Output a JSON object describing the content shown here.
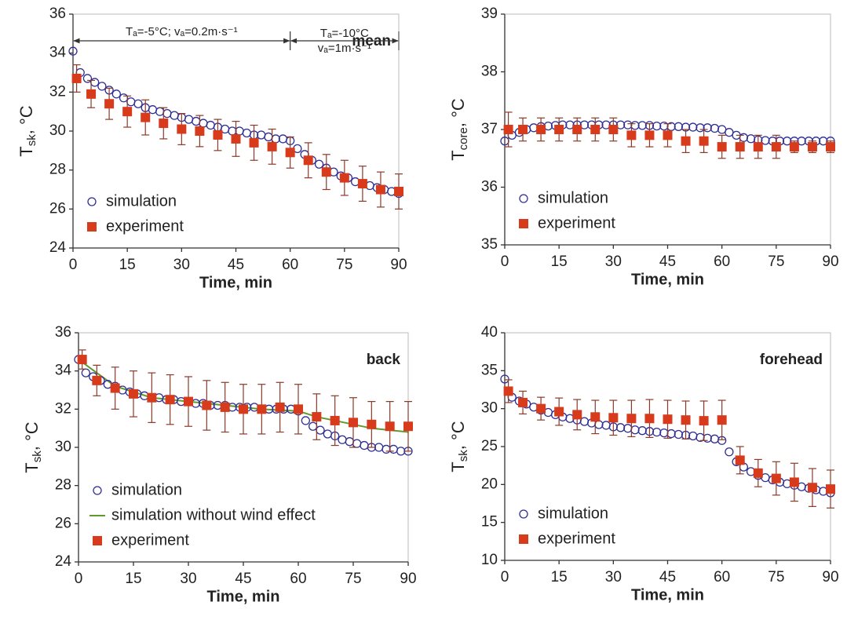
{
  "chart_data": [
    {
      "type": "scatter",
      "label": "mean",
      "x_label": "Time, min",
      "y_label": {
        "symbol": "T",
        "subscript": "sk",
        "unit": ", °C"
      },
      "xlim": [
        0,
        90
      ],
      "xticks": [
        0,
        15,
        30,
        45,
        60,
        75,
        90
      ],
      "ylim": [
        24,
        36
      ],
      "yticks": [
        24,
        26,
        28,
        30,
        32,
        34,
        36
      ],
      "legend": "lower-left",
      "annotations": [
        {
          "lines": [
            "Tₐ=-5°C; vₐ=0.2m·s⁻¹"
          ],
          "from": 0,
          "to": 60
        },
        {
          "lines": [
            "Tₐ=-10°C",
            "vₐ=1m·s⁻¹"
          ],
          "from": 60,
          "to": 90
        }
      ],
      "series": [
        {
          "name": "simulation",
          "marker": "circle",
          "color": "#2e2e96",
          "x": [
            0,
            2,
            4,
            6,
            8,
            10,
            12,
            14,
            16,
            18,
            20,
            22,
            24,
            26,
            28,
            30,
            32,
            34,
            36,
            38,
            40,
            42,
            44,
            46,
            48,
            50,
            52,
            54,
            56,
            58,
            60,
            62,
            64,
            66,
            68,
            70,
            72,
            74,
            76,
            78,
            80,
            82,
            84,
            86,
            88,
            90
          ],
          "values": [
            34.1,
            33.0,
            32.7,
            32.5,
            32.3,
            32.1,
            31.9,
            31.7,
            31.5,
            31.4,
            31.2,
            31.1,
            31.0,
            30.9,
            30.8,
            30.7,
            30.6,
            30.5,
            30.4,
            30.3,
            30.2,
            30.1,
            30.0,
            30.0,
            29.9,
            29.8,
            29.8,
            29.7,
            29.6,
            29.6,
            29.5,
            29.1,
            28.8,
            28.5,
            28.3,
            28.1,
            27.9,
            27.7,
            27.6,
            27.4,
            27.3,
            27.2,
            27.1,
            27.0,
            26.9,
            26.8
          ]
        },
        {
          "name": "experiment",
          "marker": "square",
          "color": "#d83a1c",
          "error_color": "#8a3a28",
          "x": [
            1,
            5,
            10,
            15,
            20,
            25,
            30,
            35,
            40,
            45,
            50,
            55,
            60,
            65,
            70,
            75,
            80,
            85,
            90
          ],
          "values": [
            32.7,
            31.9,
            31.4,
            31.0,
            30.7,
            30.4,
            30.1,
            30.0,
            29.8,
            29.6,
            29.4,
            29.2,
            28.9,
            28.5,
            27.9,
            27.6,
            27.3,
            27.0,
            26.9
          ],
          "error": [
            0.7,
            0.7,
            0.8,
            0.8,
            0.9,
            0.8,
            0.8,
            0.8,
            0.8,
            0.9,
            0.9,
            0.9,
            0.8,
            0.9,
            0.9,
            0.9,
            0.9,
            0.9,
            0.9
          ]
        }
      ]
    },
    {
      "type": "scatter",
      "x_label": "Time, min",
      "y_label": {
        "symbol": "T",
        "subscript": "core",
        "unit": ", °C"
      },
      "xlim": [
        0,
        90
      ],
      "xticks": [
        0,
        15,
        30,
        45,
        60,
        75,
        90
      ],
      "ylim": [
        35,
        39
      ],
      "yticks": [
        35,
        36,
        37,
        38,
        39
      ],
      "legend": "lower-left",
      "series": [
        {
          "name": "simulation",
          "marker": "circle",
          "color": "#2e2e96",
          "x": [
            0,
            2,
            4,
            6,
            8,
            10,
            12,
            14,
            16,
            18,
            20,
            22,
            24,
            26,
            28,
            30,
            32,
            34,
            36,
            38,
            40,
            42,
            44,
            46,
            48,
            50,
            52,
            54,
            56,
            58,
            60,
            62,
            64,
            66,
            68,
            70,
            72,
            74,
            76,
            78,
            80,
            82,
            84,
            86,
            88,
            90
          ],
          "values": [
            36.8,
            36.9,
            36.95,
            37.0,
            37.03,
            37.05,
            37.06,
            37.07,
            37.08,
            37.08,
            37.08,
            37.08,
            37.08,
            37.08,
            37.08,
            37.08,
            37.08,
            37.08,
            37.07,
            37.07,
            37.07,
            37.06,
            37.06,
            37.05,
            37.05,
            37.04,
            37.04,
            37.03,
            37.03,
            37.02,
            37.0,
            36.95,
            36.9,
            36.86,
            36.84,
            36.82,
            36.81,
            36.8,
            36.8,
            36.8,
            36.8,
            36.8,
            36.8,
            36.8,
            36.8,
            36.8
          ]
        },
        {
          "name": "experiment",
          "marker": "square",
          "color": "#d83a1c",
          "error_color": "#8a3a28",
          "x": [
            1,
            5,
            10,
            15,
            20,
            25,
            30,
            35,
            40,
            45,
            50,
            55,
            60,
            65,
            70,
            75,
            80,
            85,
            90
          ],
          "values": [
            37.0,
            37.0,
            37.0,
            37.0,
            37.0,
            37.0,
            37.0,
            36.9,
            36.9,
            36.9,
            36.8,
            36.8,
            36.7,
            36.7,
            36.7,
            36.7,
            36.7,
            36.7,
            36.7
          ],
          "error": [
            0.3,
            0.2,
            0.2,
            0.2,
            0.2,
            0.2,
            0.2,
            0.2,
            0.2,
            0.2,
            0.2,
            0.2,
            0.2,
            0.2,
            0.2,
            0.2,
            0.1,
            0.1,
            0.1
          ]
        }
      ]
    },
    {
      "type": "scatter",
      "label": "back",
      "x_label": "Time, min",
      "y_label": {
        "symbol": "T",
        "subscript": "sk",
        "unit": ", °C"
      },
      "xlim": [
        0,
        90
      ],
      "xticks": [
        0,
        15,
        30,
        45,
        60,
        75,
        90
      ],
      "ylim": [
        24,
        36
      ],
      "yticks": [
        24,
        26,
        28,
        30,
        32,
        34,
        36
      ],
      "legend": "lower-left",
      "series": [
        {
          "name": "simulation",
          "marker": "circle",
          "color": "#2e2e96",
          "x": [
            0,
            2,
            4,
            6,
            8,
            10,
            12,
            14,
            16,
            18,
            20,
            22,
            24,
            26,
            28,
            30,
            32,
            34,
            36,
            38,
            40,
            42,
            44,
            46,
            48,
            50,
            52,
            54,
            56,
            58,
            60,
            62,
            64,
            66,
            68,
            70,
            72,
            74,
            76,
            78,
            80,
            82,
            84,
            86,
            88,
            90
          ],
          "values": [
            34.6,
            33.9,
            33.7,
            33.5,
            33.3,
            33.2,
            33.0,
            32.9,
            32.8,
            32.7,
            32.6,
            32.6,
            32.5,
            32.5,
            32.4,
            32.4,
            32.3,
            32.3,
            32.2,
            32.2,
            32.2,
            32.1,
            32.1,
            32.1,
            32.1,
            32.0,
            32.0,
            32.0,
            32.0,
            32.0,
            31.9,
            31.4,
            31.1,
            30.9,
            30.7,
            30.6,
            30.4,
            30.3,
            30.2,
            30.1,
            30.0,
            30.0,
            29.9,
            29.9,
            29.8,
            29.8
          ]
        },
        {
          "name": "simulation without wind effect",
          "marker": "line",
          "color": "#5f9a2a",
          "x": [
            0,
            10,
            20,
            30,
            40,
            50,
            60,
            65,
            70,
            75,
            80,
            85,
            90
          ],
          "values": [
            34.6,
            33.2,
            32.6,
            32.4,
            32.2,
            32.0,
            31.9,
            31.6,
            31.4,
            31.2,
            31.0,
            30.9,
            30.8
          ]
        },
        {
          "name": "experiment",
          "marker": "square",
          "color": "#d83a1c",
          "error_color": "#8a3a28",
          "x": [
            1,
            5,
            10,
            15,
            20,
            25,
            30,
            35,
            40,
            45,
            50,
            55,
            60,
            65,
            70,
            75,
            80,
            85,
            90
          ],
          "values": [
            34.6,
            33.5,
            33.1,
            32.8,
            32.6,
            32.5,
            32.4,
            32.2,
            32.1,
            32.0,
            32.0,
            32.1,
            32.0,
            31.6,
            31.4,
            31.3,
            31.2,
            31.1,
            31.1
          ],
          "error": [
            0.5,
            0.8,
            1.1,
            1.2,
            1.3,
            1.3,
            1.3,
            1.3,
            1.3,
            1.3,
            1.3,
            1.3,
            1.3,
            1.2,
            1.3,
            1.3,
            1.2,
            1.3,
            1.3
          ]
        }
      ]
    },
    {
      "type": "scatter",
      "label": "forehead",
      "x_label": "Time, min",
      "y_label": {
        "symbol": "T",
        "subscript": "sk",
        "unit": ", °C"
      },
      "xlim": [
        0,
        90
      ],
      "xticks": [
        0,
        15,
        30,
        45,
        60,
        75,
        90
      ],
      "ylim": [
        10,
        40
      ],
      "yticks": [
        10,
        15,
        20,
        25,
        30,
        35,
        40
      ],
      "legend": "lower-left",
      "series": [
        {
          "name": "simulation",
          "marker": "circle",
          "color": "#2e2e96",
          "x": [
            0,
            2,
            4,
            6,
            8,
            10,
            12,
            14,
            16,
            18,
            20,
            22,
            24,
            26,
            28,
            30,
            32,
            34,
            36,
            38,
            40,
            42,
            44,
            46,
            48,
            50,
            52,
            54,
            56,
            58,
            60,
            62,
            64,
            66,
            68,
            70,
            72,
            74,
            76,
            78,
            80,
            82,
            84,
            86,
            88,
            90
          ],
          "values": [
            33.9,
            31.5,
            31.0,
            30.6,
            30.2,
            29.8,
            29.5,
            29.2,
            28.9,
            28.7,
            28.5,
            28.3,
            28.1,
            27.9,
            27.8,
            27.6,
            27.5,
            27.4,
            27.2,
            27.1,
            27.0,
            26.9,
            26.8,
            26.7,
            26.6,
            26.5,
            26.4,
            26.2,
            26.1,
            26.0,
            25.8,
            24.3,
            23.0,
            22.3,
            21.7,
            21.2,
            20.9,
            20.6,
            20.3,
            20.1,
            19.9,
            19.7,
            19.5,
            19.3,
            19.1,
            18.9
          ]
        },
        {
          "name": "experiment",
          "marker": "square",
          "color": "#d83a1c",
          "error_color": "#8a3a28",
          "x": [
            1,
            5,
            10,
            15,
            20,
            25,
            30,
            35,
            40,
            45,
            50,
            55,
            60,
            65,
            70,
            75,
            80,
            85,
            90
          ],
          "values": [
            32.3,
            30.8,
            30.0,
            29.6,
            29.2,
            28.9,
            28.8,
            28.7,
            28.7,
            28.6,
            28.5,
            28.4,
            28.5,
            23.2,
            21.5,
            20.8,
            20.3,
            19.6,
            19.4
          ],
          "error": [
            1.5,
            1.5,
            1.5,
            1.8,
            2.0,
            2.2,
            2.3,
            2.4,
            2.5,
            2.5,
            2.5,
            2.6,
            2.6,
            1.8,
            1.8,
            2.2,
            2.5,
            2.5,
            2.5
          ]
        }
      ]
    }
  ]
}
